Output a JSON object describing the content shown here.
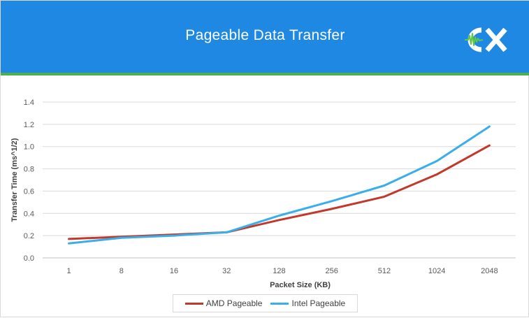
{
  "header": {
    "title": "Pageable Data Transfer",
    "logo_text": "CX",
    "colors": {
      "banner": "#1f88e2",
      "rule": "#4caf50",
      "logo_accent": "#5cc54a"
    }
  },
  "chart_data": {
    "type": "line",
    "title": "Pageable Data Transfer",
    "xlabel": "Packet Size (KB)",
    "ylabel": "Transfer Time (ms^1/2)",
    "categories": [
      "1",
      "8",
      "16",
      "32",
      "128",
      "256",
      "512",
      "1024",
      "2048"
    ],
    "ylim": [
      0,
      1.4
    ],
    "yticks": [
      "0.0",
      "0.2",
      "0.4",
      "0.6",
      "0.8",
      "1.0",
      "1.2",
      "1.4"
    ],
    "grid": true,
    "legend_position": "bottom",
    "series": [
      {
        "name": "AMD Pageable",
        "color": "#c0392b",
        "values": [
          0.17,
          0.19,
          0.21,
          0.23,
          0.34,
          0.44,
          0.55,
          0.75,
          1.01
        ]
      },
      {
        "name": "Intel Pageable",
        "color": "#3aaee8",
        "values": [
          0.13,
          0.18,
          0.2,
          0.23,
          0.38,
          0.51,
          0.65,
          0.87,
          1.18
        ]
      }
    ]
  }
}
